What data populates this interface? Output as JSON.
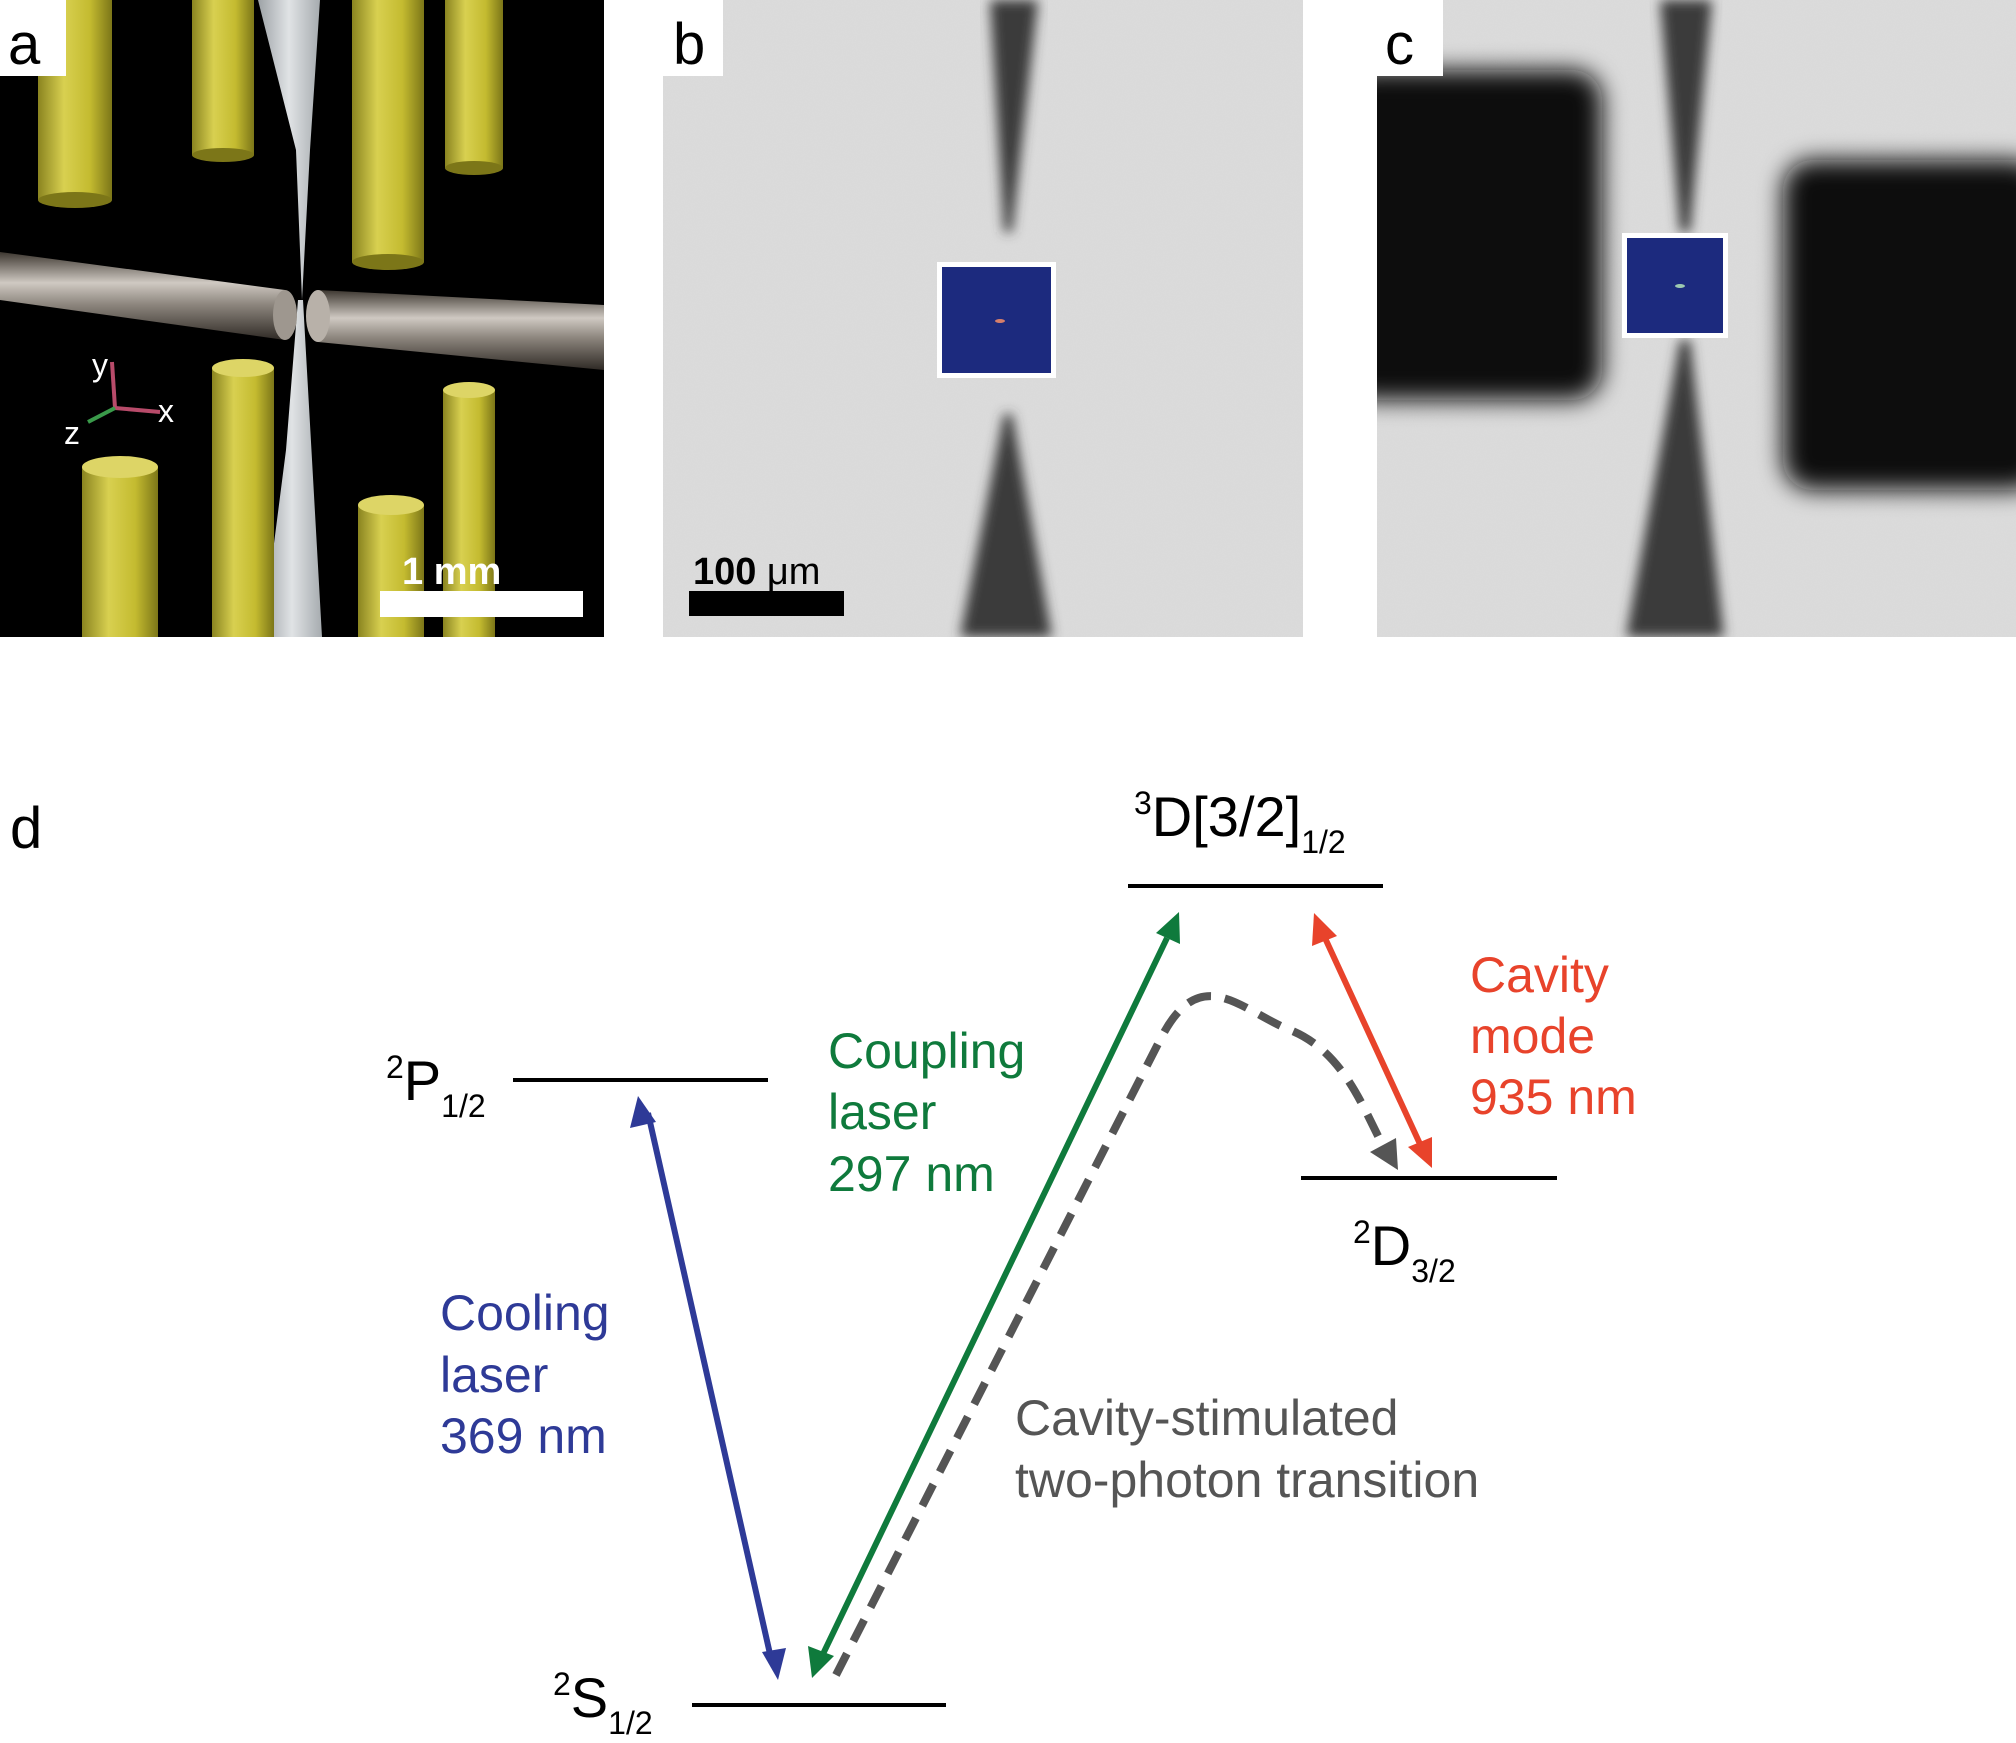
{
  "panels": {
    "a": {
      "letter": "a",
      "axes": {
        "x": "x",
        "y": "y",
        "z": "z"
      },
      "scale_bar": "1 mm"
    },
    "b": {
      "letter": "b",
      "scale_bar_value": "100",
      "scale_bar_unit": "μm"
    },
    "c": {
      "letter": "c"
    },
    "d": {
      "letter": "d",
      "levels": {
        "P": {
          "sup": "2",
          "base": "P",
          "sub": "1/2"
        },
        "S": {
          "sup": "2",
          "base": "S",
          "sub": "1/2"
        },
        "D3": {
          "sup": "3",
          "base": "D[3/2]",
          "sub": "1/2"
        },
        "D2": {
          "sup": "2",
          "base": "D",
          "sub": "3/2"
        }
      },
      "cooling": {
        "lines": [
          "Cooling",
          "laser",
          "369 nm"
        ],
        "color": "#2e3a97"
      },
      "coupling": {
        "lines": [
          "Coupling",
          "laser",
          "297 nm"
        ],
        "color": "#0f7a3c"
      },
      "cavity": {
        "lines": [
          "Cavity",
          "mode",
          "935 nm"
        ],
        "color": "#e8432b"
      },
      "two_photon": {
        "lines": [
          "Cavity-stimulated",
          "two-photon transition"
        ],
        "color": "#555555"
      }
    }
  },
  "colors": {
    "electrode": "#c6bd36",
    "inset": "#1c2a7e",
    "level_line": "#000000"
  }
}
